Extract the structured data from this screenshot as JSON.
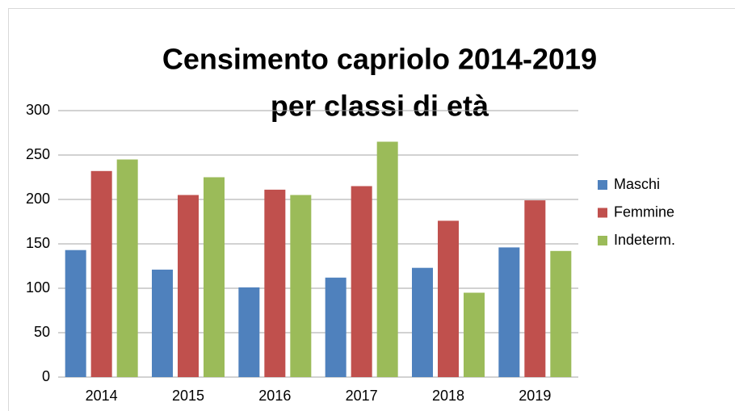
{
  "chart_data": {
    "type": "bar",
    "title": [
      "Censimento capriolo 2014-2019",
      "per classi di età"
    ],
    "categories": [
      "2014",
      "2015",
      "2016",
      "2017",
      "2018",
      "2019"
    ],
    "series": [
      {
        "name": "Maschi",
        "color": "#4f81bd",
        "values": [
          143,
          121,
          101,
          112,
          123,
          146
        ]
      },
      {
        "name": "Femmine",
        "color": "#c0504d",
        "values": [
          232,
          205,
          211,
          215,
          176,
          199
        ]
      },
      {
        "name": "Indeterm.",
        "color": "#9bbb59",
        "values": [
          245,
          225,
          205,
          265,
          95,
          142
        ]
      }
    ],
    "ylim": [
      0,
      300
    ],
    "yticks": [
      0,
      50,
      100,
      150,
      200,
      250,
      300
    ],
    "grid": true,
    "legend": "right"
  }
}
